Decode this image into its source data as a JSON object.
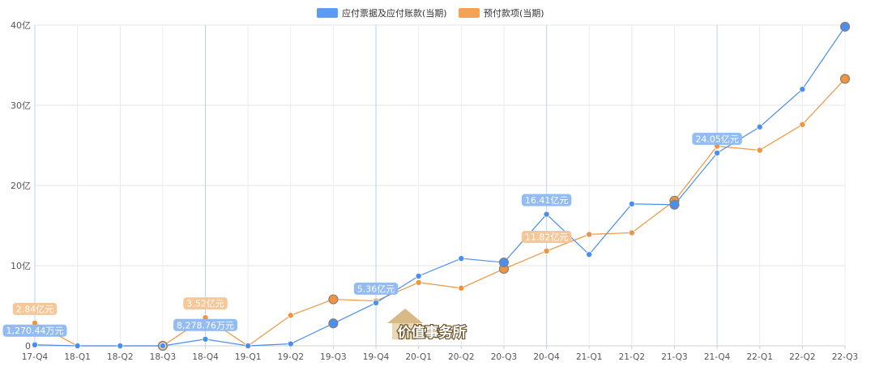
{
  "legend": {
    "items": [
      {
        "label": "应付票据及应付账款(当期)",
        "color": "#5b9bf5"
      },
      {
        "label": "预付款项(当期)",
        "color": "#f5a257"
      }
    ]
  },
  "watermark": {
    "text": "价值事务所"
  },
  "chart_data": {
    "type": "line",
    "categories": [
      "17-Q4",
      "18-Q1",
      "18-Q2",
      "18-Q3",
      "18-Q4",
      "19-Q1",
      "19-Q2",
      "19-Q3",
      "19-Q4",
      "20-Q1",
      "20-Q2",
      "20-Q3",
      "20-Q4",
      "21-Q1",
      "21-Q2",
      "21-Q3",
      "21-Q4",
      "22-Q1",
      "22-Q2",
      "22-Q3"
    ],
    "y_ticks": [
      {
        "value": 0,
        "label": "0"
      },
      {
        "value": 10,
        "label": "10亿"
      },
      {
        "value": 20,
        "label": "20亿"
      },
      {
        "value": 30,
        "label": "30亿"
      },
      {
        "value": 40,
        "label": "40亿"
      }
    ],
    "ylim": [
      0,
      40
    ],
    "unit": "亿",
    "grid": true,
    "legend_position": "top-center",
    "highlight_category_indices": [
      0,
      4,
      8,
      12,
      16
    ],
    "series": [
      {
        "name": "应付票据及应付账款(当期)",
        "color": "#4a8ef0",
        "values": [
          0.13,
          0.0,
          0.0,
          0.0,
          0.83,
          0.0,
          0.25,
          2.8,
          5.36,
          8.7,
          10.9,
          10.4,
          16.41,
          11.4,
          17.7,
          17.6,
          24.05,
          27.3,
          32.0,
          39.8
        ],
        "big_markers": [
          7,
          11,
          15,
          19
        ],
        "labels": [
          {
            "index": 0,
            "text": "1,270.44万元"
          },
          {
            "index": 4,
            "text": "8,278.76万元"
          },
          {
            "index": 8,
            "text": "5.36亿元"
          },
          {
            "index": 12,
            "text": "16.41亿元"
          },
          {
            "index": 16,
            "text": "24.05亿元"
          }
        ]
      },
      {
        "name": "预付款项(当期)",
        "color": "#f0953f",
        "values": [
          2.84,
          0.0,
          0.0,
          0.0,
          3.52,
          0.0,
          3.8,
          5.8,
          5.6,
          7.9,
          7.2,
          9.6,
          11.82,
          13.9,
          14.1,
          18.1,
          24.9,
          24.4,
          27.6,
          33.3
        ],
        "big_markers": [
          3,
          7,
          11,
          15,
          19
        ],
        "labels": [
          {
            "index": 0,
            "text": "2.84亿元"
          },
          {
            "index": 4,
            "text": "3.52亿元"
          },
          {
            "index": 12,
            "text": "11.82亿元"
          }
        ]
      }
    ]
  }
}
